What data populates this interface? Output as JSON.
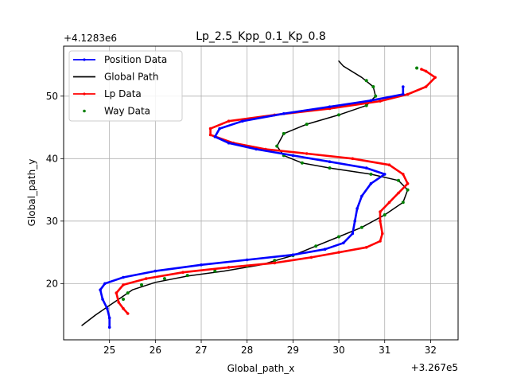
{
  "chart_data": {
    "type": "line",
    "title": "Lp_2.5_Kpp_0.1_Kp_0.8",
    "xlabel": "Global_path_x",
    "ylabel": "Global_path_y",
    "x_offset_label": "+3.267e5",
    "y_offset_label": "+4.1283e6",
    "xlim": [
      24.0,
      32.6
    ],
    "ylim": [
      11.0,
      58.0
    ],
    "x_ticks": [
      25,
      26,
      27,
      28,
      29,
      30,
      31,
      32
    ],
    "y_ticks": [
      20,
      30,
      40,
      50
    ],
    "grid": true,
    "legend_position": "top-left",
    "series": [
      {
        "name": "Position Data",
        "color": "#0000ff",
        "marker": "dot",
        "points": [
          [
            25.0,
            13.0
          ],
          [
            25.0,
            14.5
          ],
          [
            24.95,
            16.0
          ],
          [
            24.85,
            17.5
          ],
          [
            24.8,
            19.0
          ],
          [
            24.9,
            20.0
          ],
          [
            25.3,
            21.0
          ],
          [
            26.0,
            22.0
          ],
          [
            27.0,
            23.0
          ],
          [
            28.0,
            23.8
          ],
          [
            29.0,
            24.6
          ],
          [
            29.7,
            25.5
          ],
          [
            30.1,
            26.5
          ],
          [
            30.3,
            28.0
          ],
          [
            30.35,
            30.0
          ],
          [
            30.4,
            32.0
          ],
          [
            30.5,
            34.0
          ],
          [
            30.7,
            36.0
          ],
          [
            31.0,
            37.5
          ],
          [
            30.6,
            38.5
          ],
          [
            29.8,
            39.5
          ],
          [
            29.0,
            40.5
          ],
          [
            28.2,
            41.5
          ],
          [
            27.6,
            42.5
          ],
          [
            27.3,
            43.5
          ],
          [
            27.4,
            44.8
          ],
          [
            27.9,
            46.0
          ],
          [
            28.8,
            47.2
          ],
          [
            29.8,
            48.3
          ],
          [
            30.7,
            49.3
          ],
          [
            31.4,
            50.3
          ],
          [
            31.4,
            51.5
          ]
        ]
      },
      {
        "name": "Global Path",
        "color": "#000000",
        "marker": "none",
        "points": [
          [
            24.4,
            13.3
          ],
          [
            24.7,
            15.0
          ],
          [
            25.0,
            16.5
          ],
          [
            25.2,
            17.5
          ],
          [
            25.5,
            19.0
          ],
          [
            26.0,
            20.2
          ],
          [
            26.7,
            21.2
          ],
          [
            27.5,
            22.0
          ],
          [
            28.3,
            23.0
          ],
          [
            29.0,
            24.5
          ],
          [
            29.5,
            26.0
          ],
          [
            30.0,
            27.5
          ],
          [
            30.5,
            29.0
          ],
          [
            31.0,
            31.0
          ],
          [
            31.4,
            33.0
          ],
          [
            31.5,
            35.0
          ],
          [
            31.3,
            36.5
          ],
          [
            30.7,
            37.5
          ],
          [
            29.8,
            38.5
          ],
          [
            29.2,
            39.3
          ],
          [
            28.8,
            40.5
          ],
          [
            28.65,
            42.0
          ],
          [
            28.8,
            44.0
          ],
          [
            29.3,
            45.5
          ],
          [
            30.0,
            47.0
          ],
          [
            30.6,
            48.5
          ],
          [
            30.8,
            50.0
          ],
          [
            30.75,
            51.5
          ],
          [
            30.5,
            53.0
          ],
          [
            30.1,
            54.8
          ],
          [
            30.0,
            55.6
          ]
        ]
      },
      {
        "name": "Lp Data",
        "color": "#ff0000",
        "marker": "dot",
        "points": [
          [
            25.4,
            15.2
          ],
          [
            25.3,
            16.0
          ],
          [
            25.2,
            17.0
          ],
          [
            25.15,
            18.5
          ],
          [
            25.3,
            19.8
          ],
          [
            25.8,
            20.8
          ],
          [
            26.6,
            21.8
          ],
          [
            27.6,
            22.6
          ],
          [
            28.6,
            23.3
          ],
          [
            29.4,
            24.2
          ],
          [
            30.0,
            25.0
          ],
          [
            30.6,
            25.8
          ],
          [
            30.9,
            26.8
          ],
          [
            30.95,
            28.0
          ],
          [
            30.9,
            30.0
          ],
          [
            30.9,
            31.5
          ],
          [
            31.1,
            33.0
          ],
          [
            31.3,
            34.5
          ],
          [
            31.5,
            36.0
          ],
          [
            31.4,
            37.5
          ],
          [
            31.1,
            39.0
          ],
          [
            30.3,
            40.0
          ],
          [
            29.3,
            40.8
          ],
          [
            28.4,
            41.5
          ],
          [
            27.7,
            42.5
          ],
          [
            27.2,
            43.8
          ],
          [
            27.2,
            44.8
          ],
          [
            27.6,
            46.0
          ],
          [
            28.6,
            47.0
          ],
          [
            29.8,
            48.0
          ],
          [
            30.9,
            49.2
          ],
          [
            31.5,
            50.3
          ],
          [
            31.9,
            51.5
          ],
          [
            32.1,
            53.0
          ],
          [
            31.9,
            54.0
          ],
          [
            31.8,
            54.3
          ]
        ]
      },
      {
        "name": "Way Data",
        "color": "#008000",
        "marker": "dot",
        "points": [
          [
            25.3,
            17.5
          ],
          [
            25.4,
            18.5
          ],
          [
            25.7,
            19.8
          ],
          [
            26.2,
            20.8
          ],
          [
            26.7,
            21.3
          ],
          [
            27.3,
            22.0
          ],
          [
            28.0,
            22.8
          ],
          [
            28.6,
            23.7
          ],
          [
            29.0,
            24.5
          ],
          [
            29.5,
            26.0
          ],
          [
            30.0,
            27.5
          ],
          [
            30.5,
            29.0
          ],
          [
            31.0,
            31.0
          ],
          [
            31.4,
            33.0
          ],
          [
            31.5,
            35.0
          ],
          [
            31.3,
            36.5
          ],
          [
            30.7,
            37.5
          ],
          [
            29.8,
            38.5
          ],
          [
            29.2,
            39.3
          ],
          [
            28.8,
            40.5
          ],
          [
            28.65,
            42.0
          ],
          [
            28.8,
            44.0
          ],
          [
            29.3,
            45.5
          ],
          [
            30.0,
            47.0
          ],
          [
            30.6,
            48.5
          ],
          [
            30.8,
            50.0
          ],
          [
            30.75,
            51.5
          ],
          [
            30.6,
            52.5
          ],
          [
            31.7,
            54.5
          ]
        ]
      }
    ]
  }
}
